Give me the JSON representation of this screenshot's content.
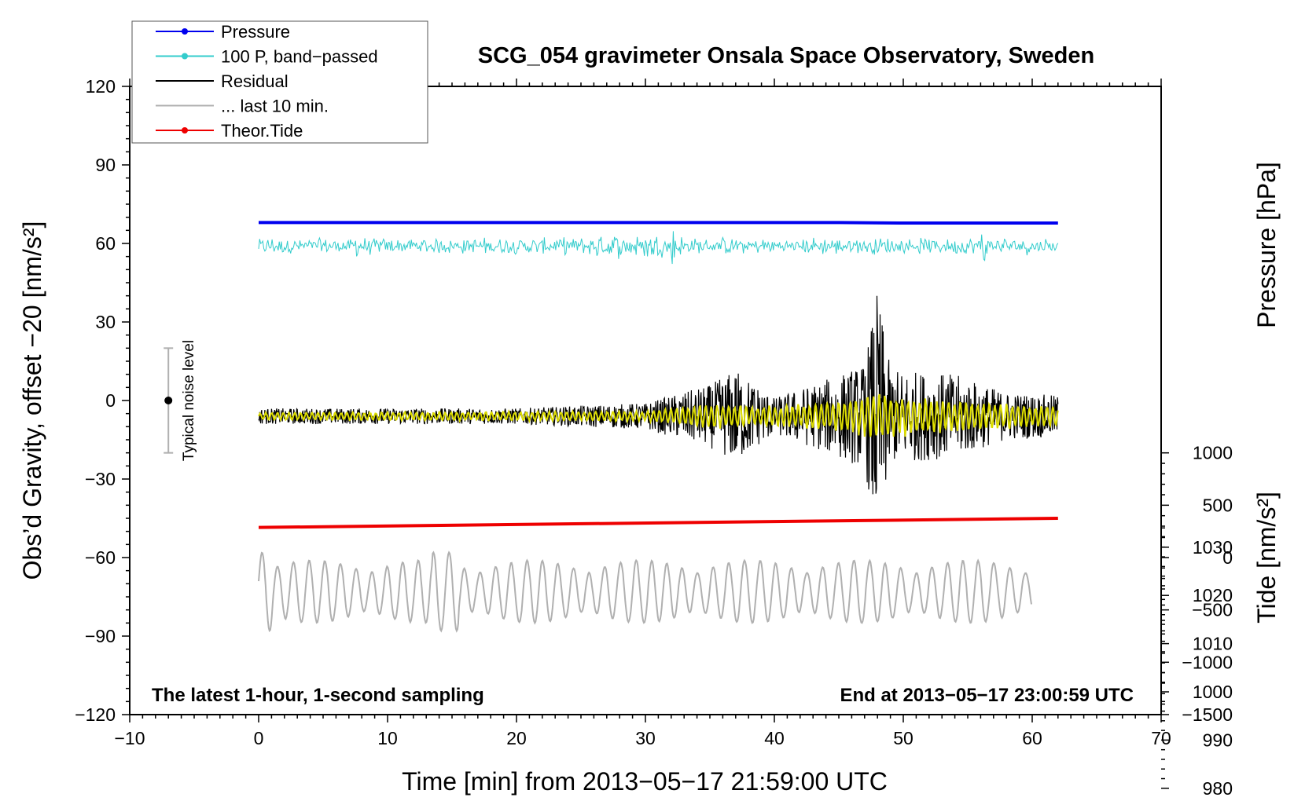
{
  "chart_data": {
    "type": "line",
    "title": "SCG_054 gravimeter Onsala Space Observatory, Sweden",
    "xlabel": "Time [min] from 2013−05−17 21:59:00 UTC",
    "ylabel": "Obs’d Gravity, offset −20 [nm/s²]",
    "xlim": [
      -10,
      70
    ],
    "ylim": [
      -120,
      120
    ],
    "xticks": [
      "−10",
      "0",
      "10",
      "20",
      "30",
      "40",
      "50",
      "60",
      "70"
    ],
    "xtick_values": [
      -10,
      0,
      10,
      20,
      30,
      40,
      50,
      60,
      70
    ],
    "yticks": [
      "120",
      "90",
      "60",
      "30",
      "0",
      "−30",
      "−60",
      "−90",
      "−120"
    ],
    "ytick_values": [
      120,
      90,
      60,
      30,
      0,
      -30,
      -60,
      -90,
      -120
    ],
    "right_axis_pressure": {
      "label": "Pressure [hPa]",
      "ticks": [
        "1030",
        "1020",
        "1010",
        "1000",
        "990",
        "980"
      ],
      "tick_values": [
        1030,
        1020,
        1010,
        1000,
        990,
        980
      ]
    },
    "right_axis_tide": {
      "label": "Tide [nm/s²]",
      "ticks": [
        "1000",
        "500",
        "0",
        "−500",
        "−1000",
        "−1500"
      ],
      "tick_values": [
        1000,
        500,
        0,
        -500,
        -1000,
        -1500
      ]
    },
    "legend": {
      "position": "top-left",
      "entries": [
        {
          "name": "Pressure",
          "color": "#0000ee",
          "style": "line-dot"
        },
        {
          "name": "100 P, band−passed",
          "color": "#33cccc",
          "style": "line-dot"
        },
        {
          "name": "Residual",
          "color": "#000000",
          "style": "line"
        },
        {
          "name": "... last 10 min.",
          "color": "#b0b0b0",
          "style": "line"
        },
        {
          "name": "Theor.Tide",
          "color": "#ee0000",
          "style": "line-dot"
        }
      ]
    },
    "series": [
      {
        "name": "Pressure",
        "color": "#0000ee",
        "x": [
          0,
          10,
          20,
          30,
          40,
          45,
          50,
          62
        ],
        "y": [
          68,
          68,
          68,
          68,
          68,
          68,
          67.8,
          67.8
        ]
      },
      {
        "name": "100 P, band−passed",
        "color": "#33cccc",
        "x_range": [
          0,
          62
        ],
        "center": 59,
        "amplitude": 4
      },
      {
        "name": "Residual",
        "color": "#000000",
        "x_range": [
          0,
          62
        ],
        "center": -6,
        "envelope": [
          [
            0,
            3
          ],
          [
            20,
            3
          ],
          [
            30,
            5
          ],
          [
            35,
            12
          ],
          [
            37,
            18
          ],
          [
            40,
            7
          ],
          [
            44,
            14
          ],
          [
            47,
            20
          ],
          [
            48,
            48
          ],
          [
            49,
            18
          ],
          [
            54,
            16
          ],
          [
            58,
            9
          ],
          [
            62,
            8
          ]
        ]
      },
      {
        "name": "Residual (yellow overlay)",
        "color": "#dddd00",
        "x_range": [
          0,
          62
        ],
        "center": -6,
        "envelope": [
          [
            0,
            1.5
          ],
          [
            30,
            2
          ],
          [
            35,
            5
          ],
          [
            40,
            4
          ],
          [
            45,
            6
          ],
          [
            48,
            9
          ],
          [
            54,
            6
          ],
          [
            62,
            4
          ]
        ]
      },
      {
        "name": "... last 10 min.",
        "color": "#b0b0b0",
        "x_range": [
          0,
          60
        ],
        "center": -73,
        "amplitude": 10
      },
      {
        "name": "Theor.Tide",
        "color": "#ee0000",
        "x": [
          0,
          62
        ],
        "y": [
          -48.5,
          -45
        ]
      }
    ],
    "noise_bar": {
      "x": -7,
      "y_low": -20,
      "y_high": 20,
      "label": "Typical noise level"
    },
    "annotations": {
      "bottom_left": "The latest 1-hour, 1-second sampling",
      "bottom_right": "End at 2013−05−17 23:00:59 UTC"
    }
  }
}
